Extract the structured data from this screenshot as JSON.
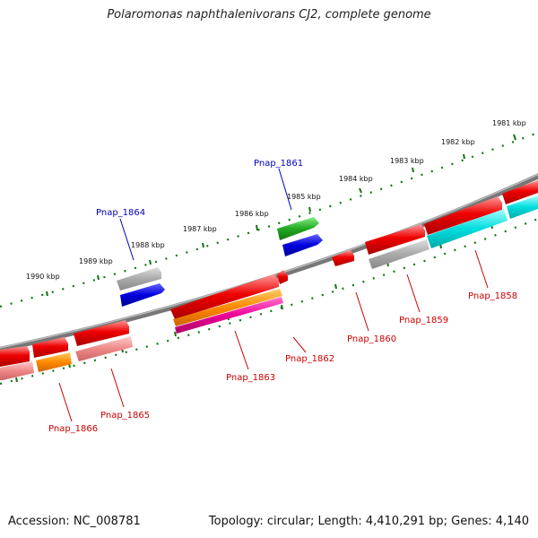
{
  "header": {
    "title": "Polaromonas naphthalenivorans CJ2, complete genome"
  },
  "footer": {
    "accession": "Accession: NC_008781",
    "genome_info": "Topology: circular; Length: 4,410,291 bp; Genes: 4,140"
  },
  "ruler_labels": [
    "1990 kbp",
    "1989 kbp",
    "1988 kbp",
    "1987 kbp",
    "1986 kbp",
    "1985 kbp",
    "1984 kbp",
    "1983 kbp",
    "1982 kbp",
    "1981 kbp"
  ],
  "gene_labels_top": [
    "Pnap_1864",
    "Pnap_1861"
  ],
  "gene_labels_bottom": [
    "Pnap_1866",
    "Pnap_1865",
    "Pnap_1863",
    "Pnap_1862",
    "Pnap_1860",
    "Pnap_1859",
    "Pnap_1858"
  ],
  "colors": {
    "red": "#ee0000",
    "pink": "#ee8888",
    "orange": "#ff8800",
    "magenta": "#ee0099",
    "gray": "#aaaaaa",
    "blue": "#0000dd",
    "green": "#22aa22",
    "cyan": "#00dddd",
    "backbone": "#777777",
    "ruler": "#117711"
  }
}
